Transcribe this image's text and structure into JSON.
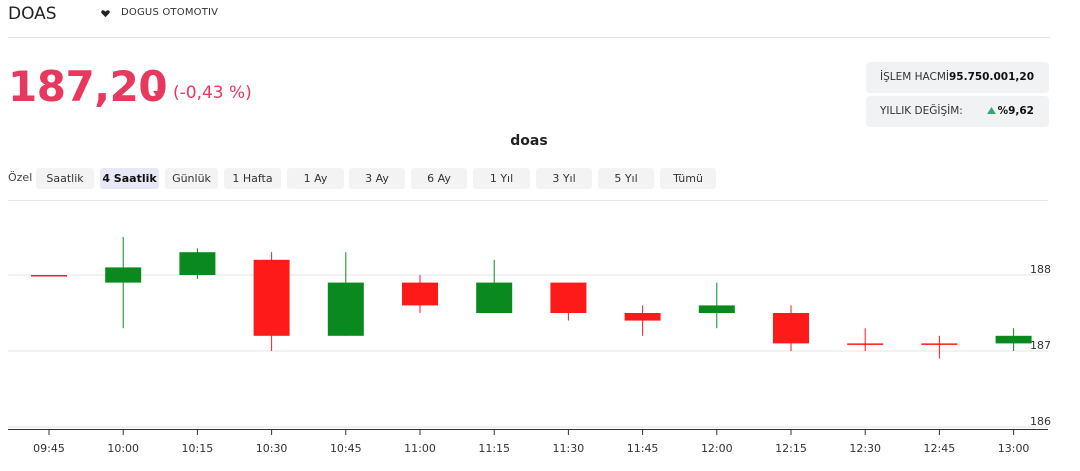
{
  "header": {
    "ticker": "DOAS",
    "company": "DOGUS OTOMOTIV"
  },
  "quote": {
    "price": "187,20",
    "change": "(-0,43 %)",
    "volume_label": "İŞLEM HACMİ:",
    "volume_value": "95.750.001,20",
    "yearly_label": "YILLIK DEĞİŞİM:",
    "yearly_value": "%9,62"
  },
  "chart_title": "doas",
  "ranges": {
    "label": "Özel",
    "buttons": [
      "Saatlik",
      "4 Saatlik",
      "Günlük",
      "1 Hafta",
      "1 Ay",
      "3 Ay",
      "6 Ay",
      "1 Yıl",
      "3 Yıl",
      "5 Yıl",
      "Tümü"
    ],
    "active": "4 Saatlik"
  },
  "colors": {
    "up": "#0a8a1e",
    "down": "#ff1a1a",
    "price": "#e8385d"
  },
  "chart_data": {
    "type": "candlestick",
    "categories": [
      "09:45",
      "10:00",
      "10:15",
      "10:30",
      "10:45",
      "11:00",
      "11:15",
      "11:30",
      "11:45",
      "12:00",
      "12:15",
      "12:30",
      "12:45",
      "13:00"
    ],
    "candles": [
      {
        "open": 188.0,
        "high": 188.0,
        "low": 188.0,
        "close": 188.0
      },
      {
        "open": 187.9,
        "high": 188.5,
        "low": 187.3,
        "close": 188.1
      },
      {
        "open": 188.0,
        "high": 188.35,
        "low": 187.95,
        "close": 188.3
      },
      {
        "open": 188.2,
        "high": 188.3,
        "low": 187.0,
        "close": 187.2
      },
      {
        "open": 187.2,
        "high": 188.3,
        "low": 187.2,
        "close": 187.9
      },
      {
        "open": 187.9,
        "high": 188.0,
        "low": 187.5,
        "close": 187.6
      },
      {
        "open": 187.5,
        "high": 188.2,
        "low": 187.5,
        "close": 187.9
      },
      {
        "open": 187.9,
        "high": 187.9,
        "low": 187.4,
        "close": 187.5
      },
      {
        "open": 187.5,
        "high": 187.6,
        "low": 187.2,
        "close": 187.4
      },
      {
        "open": 187.5,
        "high": 187.9,
        "low": 187.3,
        "close": 187.6
      },
      {
        "open": 187.5,
        "high": 187.6,
        "low": 187.0,
        "close": 187.1
      },
      {
        "open": 187.1,
        "high": 187.3,
        "low": 187.0,
        "close": 187.1
      },
      {
        "open": 187.1,
        "high": 187.2,
        "low": 186.9,
        "close": 187.1
      },
      {
        "open": 187.1,
        "high": 187.3,
        "low": 187.0,
        "close": 187.2
      }
    ],
    "yticks": [
      "186",
      "187",
      "188"
    ],
    "ylim": [
      186,
      188.5
    ],
    "grid": true
  }
}
